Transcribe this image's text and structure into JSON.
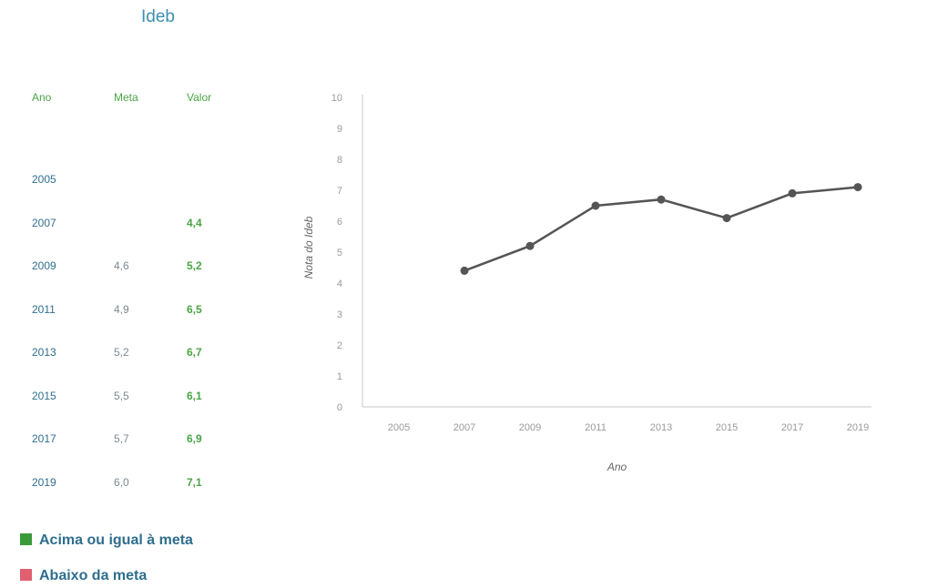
{
  "title": "Ideb",
  "table": {
    "headers": [
      "Ano",
      "Meta",
      "Valor"
    ],
    "rows": [
      {
        "ano": "2005",
        "meta": "",
        "valor": ""
      },
      {
        "ano": "2007",
        "meta": "",
        "valor": "4,4"
      },
      {
        "ano": "2009",
        "meta": "4,6",
        "valor": "5,2"
      },
      {
        "ano": "2011",
        "meta": "4,9",
        "valor": "6,5"
      },
      {
        "ano": "2013",
        "meta": "5,2",
        "valor": "6,7"
      },
      {
        "ano": "2015",
        "meta": "5,5",
        "valor": "6,1"
      },
      {
        "ano": "2017",
        "meta": "5,7",
        "valor": "6,9"
      },
      {
        "ano": "2019",
        "meta": "6,0",
        "valor": "7,1"
      }
    ]
  },
  "legend": {
    "above_label": "Acima ou igual à meta",
    "above_color": "#3a9a3a",
    "below_label": "Abaixo da meta",
    "below_color": "#e06070"
  },
  "chart_data": {
    "type": "line",
    "categories": [
      "2005",
      "2007",
      "2009",
      "2011",
      "2013",
      "2015",
      "2017",
      "2019"
    ],
    "series": [
      {
        "values": [
          null,
          4.4,
          5.2,
          6.5,
          6.7,
          6.1,
          6.9,
          7.1
        ]
      }
    ],
    "xlabel": "Ano",
    "ylabel": "Nota do Ideb",
    "ylim": [
      0,
      10
    ],
    "yticks": [
      0,
      1,
      2,
      3,
      4,
      5,
      6,
      7,
      8,
      9,
      10
    ],
    "grid": false,
    "line_color": "#555555"
  }
}
